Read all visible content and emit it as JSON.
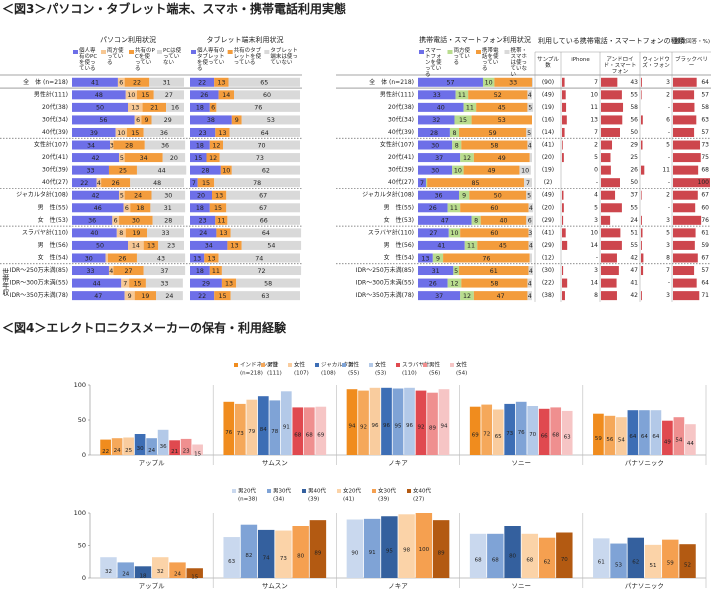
{
  "figure_titles": [
    "＜図3＞パソコン・タブレット端末、スマホ・携帯電話利用実態",
    "＜図4＞エレクトロニクスメーカーの保有・利用経験"
  ],
  "chart_data": [
    {
      "type": "stacked-bar-h",
      "title": "パソコン利用状況",
      "categories": [
        "全　体 (n=218)",
        "男性計(111)",
        "20代(38)",
        "30代(34)",
        "40代(39)",
        "女性計(107)",
        "20代(41)",
        "30代(39)",
        "40代(27)",
        "ジャカルタ計(108)",
        "男　性(55)",
        "女　性(53)",
        "スラバヤ計(110)",
        "男　性(56)",
        "女　性(54)",
        "IDR～250万未満(85)",
        "IDR～300万未満(55)",
        "IDR～350万未満(78)"
      ],
      "group_label": "世帯年収",
      "xlim": [
        0,
        100
      ],
      "series": [
        {
          "name": "個人専有のPCを使っている",
          "color": "#6d6fe8",
          "values": [
            41,
            48,
            50,
            56,
            39,
            34,
            42,
            33,
            22,
            42,
            46,
            36,
            40,
            50,
            30,
            33,
            44,
            47
          ]
        },
        {
          "name": "両方使っている",
          "color": "#f7c894",
          "values": [
            6,
            10,
            13,
            6,
            10,
            3,
            5,
            0,
            4,
            5,
            6,
            6,
            8,
            14,
            2,
            4,
            7,
            9
          ]
        },
        {
          "name": "共有のPCを使っている",
          "color": "#f39c3c",
          "values": [
            22,
            15,
            21,
            9,
            15,
            28,
            34,
            25,
            26,
            24,
            18,
            30,
            19,
            13,
            26,
            27,
            15,
            19
          ]
        },
        {
          "name": "PCは使っていない",
          "color": "#d9d9d9",
          "values": [
            31,
            27,
            16,
            29,
            36,
            36,
            20,
            44,
            48,
            30,
            31,
            28,
            33,
            23,
            43,
            37,
            33,
            24
          ]
        }
      ]
    },
    {
      "type": "stacked-bar-h",
      "title": "タブレット端末利用状況",
      "xlim": [
        0,
        100
      ],
      "series": [
        {
          "name": "個人専有のタブレットを使っている",
          "color": "#6d6fe8",
          "values": [
            22,
            26,
            18,
            38,
            23,
            18,
            15,
            28,
            7,
            20,
            18,
            23,
            24,
            34,
            13,
            18,
            29,
            22
          ]
        },
        {
          "name": "共有のタブレットを使っている",
          "color": "#f39c3c",
          "values": [
            13,
            14,
            6,
            9,
            13,
            12,
            12,
            10,
            15,
            13,
            15,
            11,
            13,
            13,
            13,
            11,
            13,
            15
          ]
        },
        {
          "name": "タブレット端末は使っていない",
          "color": "#d9d9d9",
          "values": [
            65,
            60,
            76,
            53,
            64,
            70,
            73,
            62,
            78,
            67,
            67,
            66,
            64,
            54,
            74,
            72,
            58,
            63
          ]
        }
      ]
    },
    {
      "type": "stacked-bar-h",
      "title": "携帯電話・スマートフォン利用状況",
      "xlim": [
        0,
        100
      ],
      "series": [
        {
          "name": "スマートフォンを使っている",
          "color": "#6d6fe8",
          "values": [
            57,
            33,
            40,
            32,
            28,
            30,
            37,
            30,
            7,
            36,
            26,
            47,
            27,
            41,
            13,
            31,
            26,
            37
          ]
        },
        {
          "name": "両方使っている",
          "color": "#b9dc8e",
          "values": [
            10,
            11,
            11,
            15,
            8,
            8,
            12,
            10,
            1,
            9,
            11,
            8,
            10,
            11,
            9,
            5,
            12,
            12
          ]
        },
        {
          "name": "携帯電話を使っている",
          "color": "#f39c3c",
          "values": [
            33,
            52,
            45,
            53,
            59,
            58,
            49,
            49,
            85,
            50,
            60,
            40,
            60,
            45,
            76,
            61,
            58,
            47
          ]
        },
        {
          "name": "携帯・スマホは使っていない",
          "color": "#d9d9d9",
          "values": [
            1,
            4,
            5,
            0,
            5,
            4,
            2,
            10,
            7,
            5,
            4,
            6,
            3,
            4,
            2,
            4,
            4,
            4
          ]
        }
      ]
    },
    {
      "type": "bar-table",
      "title": "利用している携帯電話・スマートフォンの種類",
      "unit": "(複数回答・%)",
      "sample_header": "サンプル数",
      "sample_sizes": [
        "(90)",
        "(49)",
        "(19)",
        "(16)",
        "(14)",
        "(41)",
        "(20)",
        "(19)",
        "(2)",
        "(49)",
        "(20)",
        "(29)",
        "(41)",
        "(29)",
        "(12)",
        "(30)",
        "(22)",
        "(38)"
      ],
      "null_label": "-",
      "xlim": [
        0,
        100
      ],
      "color": "#c4262e",
      "series": [
        {
          "name": "iPhone",
          "values": [
            7,
            10,
            11,
            13,
            7,
            2,
            5,
            0,
            null,
            4,
            5,
            3,
            10,
            14,
            null,
            3,
            14,
            8
          ]
        },
        {
          "name": "アンドロイド・スマートフォン",
          "values": [
            43,
            55,
            58,
            56,
            50,
            29,
            25,
            26,
            50,
            37,
            55,
            24,
            51,
            55,
            42,
            47,
            41,
            42
          ]
        },
        {
          "name": "ウィンドウズ・フォン",
          "values": [
            3,
            2,
            null,
            6,
            null,
            5,
            null,
            11,
            null,
            2,
            null,
            3,
            5,
            3,
            8,
            7,
            null,
            3
          ]
        },
        {
          "name": "ブラックベリー",
          "values": [
            64,
            57,
            58,
            63,
            57,
            73,
            75,
            68,
            100,
            67,
            60,
            76,
            61,
            59,
            67,
            57,
            64,
            71
          ]
        }
      ]
    },
    {
      "type": "bar",
      "categories": [
        "アップル",
        "サムスン",
        "ノキア",
        "ソニー",
        "パナソニック"
      ],
      "ylim": [
        0,
        100
      ],
      "yticks": [
        0,
        50,
        100
      ],
      "series": [
        {
          "name": "インドネシア計",
          "n": "(n=218)",
          "color": "#f08c1e",
          "values": [
            22,
            76,
            94,
            69,
            59
          ]
        },
        {
          "name": "男性",
          "n": "(111)",
          "color": "#f5a85a",
          "values": [
            24,
            73,
            92,
            72,
            56
          ]
        },
        {
          "name": "女性",
          "n": "(107)",
          "color": "#f9cc9e",
          "values": [
            25,
            79,
            96,
            65,
            54
          ]
        },
        {
          "name": "ジャカルタ計",
          "n": "(108)",
          "color": "#3d6eb5",
          "values": [
            30,
            84,
            96,
            73,
            64
          ]
        },
        {
          "name": "男性",
          "n": "(55)",
          "color": "#7fa3d6",
          "values": [
            24,
            78,
            95,
            76,
            64
          ]
        },
        {
          "name": "女性",
          "n": "(53)",
          "color": "#b3c9e8",
          "values": [
            36,
            91,
            96,
            70,
            64
          ]
        },
        {
          "name": "スラバヤ計",
          "n": "(110)",
          "color": "#e0494f",
          "values": [
            21,
            68,
            92,
            66,
            49
          ]
        },
        {
          "name": "男性",
          "n": "(56)",
          "color": "#ef8f8f",
          "values": [
            23,
            68,
            89,
            68,
            54
          ]
        },
        {
          "name": "女性",
          "n": "(54)",
          "color": "#f6c5c5",
          "values": [
            15,
            69,
            94,
            63,
            44
          ]
        }
      ]
    },
    {
      "type": "bar",
      "categories": [
        "アップル",
        "サムスン",
        "ノキア",
        "ソニー",
        "パナソニック"
      ],
      "ylim": [
        0,
        100
      ],
      "yticks": [
        0,
        50,
        100
      ],
      "series": [
        {
          "name": "男20代",
          "n": "(n=38)",
          "color": "#c9d8ee",
          "values": [
            32,
            63,
            90,
            68,
            61
          ]
        },
        {
          "name": "男30代",
          "n": "(34)",
          "color": "#7fa3d6",
          "values": [
            24,
            82,
            91,
            68,
            53
          ]
        },
        {
          "name": "男40代",
          "n": "(39)",
          "color": "#34609e",
          "values": [
            18,
            74,
            95,
            80,
            62
          ]
        },
        {
          "name": "女20代",
          "n": "(41)",
          "color": "#fbd3a8",
          "values": [
            32,
            73,
            98,
            68,
            51
          ]
        },
        {
          "name": "女30代",
          "n": "(39)",
          "color": "#f5a050",
          "values": [
            24,
            80,
            100,
            62,
            59
          ]
        },
        {
          "name": "女40代",
          "n": "(27)",
          "color": "#b35a12",
          "values": [
            15,
            89,
            89,
            70,
            52
          ]
        }
      ]
    }
  ]
}
